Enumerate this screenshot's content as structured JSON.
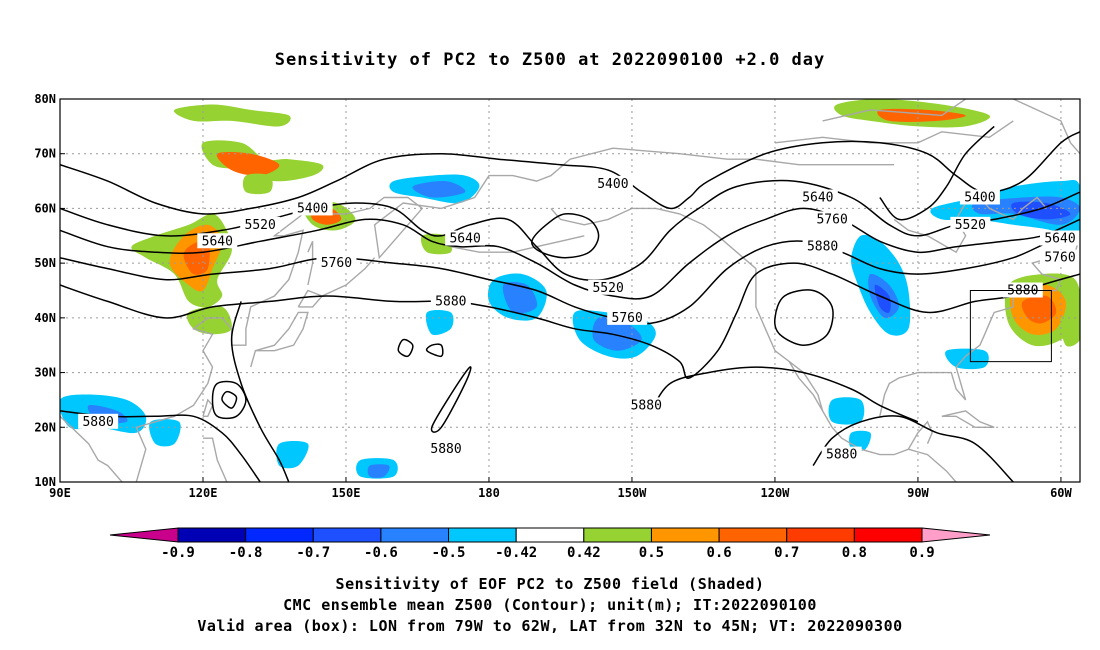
{
  "title": "Sensitivity of PC2 to Z500 at 2022090100 +2.0 day",
  "map": {
    "lon_range": [
      90,
      304
    ],
    "lat_range": [
      10,
      80
    ],
    "lat_labels": [
      "10N",
      "20N",
      "30N",
      "40N",
      "50N",
      "60N",
      "70N",
      "80N"
    ],
    "lat_values": [
      10,
      20,
      30,
      40,
      50,
      60,
      70,
      80
    ],
    "lon_labels": [
      "90E",
      "120E",
      "150E",
      "180",
      "150W",
      "120W",
      "90W",
      "60W"
    ],
    "lon_values": [
      90,
      120,
      150,
      180,
      210,
      240,
      270,
      300
    ],
    "valid_box": {
      "lon": [
        281,
        298
      ],
      "lat": [
        32,
        45
      ]
    },
    "contour_labels": [
      {
        "text": "5400",
        "lon": 143,
        "lat": 60
      },
      {
        "text": "5520",
        "lon": 132,
        "lat": 57
      },
      {
        "text": "5640",
        "lon": 123,
        "lat": 54
      },
      {
        "text": "5760",
        "lon": 148,
        "lat": 50
      },
      {
        "text": "5880",
        "lon": 172,
        "lat": 43
      },
      {
        "text": "5640",
        "lon": 175,
        "lat": 54.5
      },
      {
        "text": "5400",
        "lon": 206,
        "lat": 64.5
      },
      {
        "text": "5520",
        "lon": 205,
        "lat": 45.5
      },
      {
        "text": "5760",
        "lon": 209,
        "lat": 40
      },
      {
        "text": "5880",
        "lon": 213,
        "lat": 24
      },
      {
        "text": "5640",
        "lon": 249,
        "lat": 62
      },
      {
        "text": "5760",
        "lon": 252,
        "lat": 58
      },
      {
        "text": "5880",
        "lon": 250,
        "lat": 53
      },
      {
        "text": "5880",
        "lon": 254,
        "lat": 15
      },
      {
        "text": "5400",
        "lon": 283,
        "lat": 62
      },
      {
        "text": "5520",
        "lon": 281,
        "lat": 57
      },
      {
        "text": "5640",
        "lon": 303,
        "lat": 54.5
      },
      {
        "text": "5760",
        "lon": 303,
        "lat": 51
      },
      {
        "text": "5880",
        "lon": 292,
        "lat": 45
      },
      {
        "text": "5880",
        "lon": 98,
        "lat": 21
      },
      {
        "text": "5880",
        "lon": 171,
        "lat": 16
      }
    ]
  },
  "colorbar": {
    "labels": [
      "-0.9",
      "-0.8",
      "-0.7",
      "-0.6",
      "-0.5",
      "-0.42",
      "0.42",
      "0.5",
      "0.6",
      "0.7",
      "0.8",
      "0.9"
    ],
    "colors": [
      "#0000b4",
      "#0028ff",
      "#1e50ff",
      "#2882ff",
      "#00c8ff",
      "#ffffff",
      "#96d232",
      "#ff9600",
      "#ff6400",
      "#ff3c00",
      "#ff0000"
    ],
    "low_extend_color": "#c8008c",
    "high_extend_color": "#ff9ec8"
  },
  "footer": {
    "line1": "Sensitivity of EOF PC2 to Z500 field (Shaded)",
    "line2": "CMC ensemble mean Z500 (Contour); unit(m); IT:2022090100",
    "line3": "Valid area (box): LON from 79W to 62W, LAT from 32N to 45N; VT: 2022090300"
  }
}
